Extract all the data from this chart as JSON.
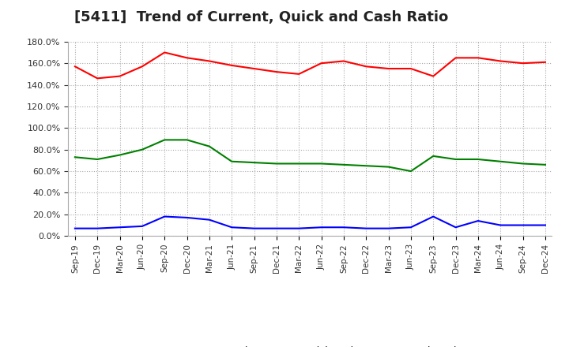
{
  "title": "[5411]  Trend of Current, Quick and Cash Ratio",
  "x_labels": [
    "Sep-19",
    "Dec-19",
    "Mar-20",
    "Jun-20",
    "Sep-20",
    "Dec-20",
    "Mar-21",
    "Jun-21",
    "Sep-21",
    "Dec-21",
    "Mar-22",
    "Jun-22",
    "Sep-22",
    "Dec-22",
    "Mar-23",
    "Jun-23",
    "Sep-23",
    "Dec-23",
    "Mar-24",
    "Jun-24",
    "Sep-24",
    "Dec-24"
  ],
  "current_ratio": [
    157,
    146,
    148,
    157,
    170,
    165,
    162,
    158,
    155,
    152,
    150,
    160,
    162,
    157,
    155,
    155,
    148,
    165,
    165,
    162,
    160,
    161
  ],
  "quick_ratio": [
    73,
    71,
    75,
    80,
    89,
    89,
    83,
    69,
    68,
    67,
    67,
    67,
    66,
    65,
    64,
    60,
    74,
    71,
    71,
    69,
    67,
    66
  ],
  "cash_ratio": [
    7,
    7,
    8,
    9,
    18,
    17,
    15,
    8,
    7,
    7,
    7,
    8,
    8,
    7,
    7,
    8,
    18,
    8,
    14,
    10,
    10,
    10
  ],
  "current_color": "#FF0000",
  "quick_color": "#008000",
  "cash_color": "#0000FF",
  "ylim": [
    0,
    180
  ],
  "ytick_step": 20,
  "background_color": "#FFFFFF",
  "grid_color": "#AAAAAA",
  "title_fontsize": 13
}
